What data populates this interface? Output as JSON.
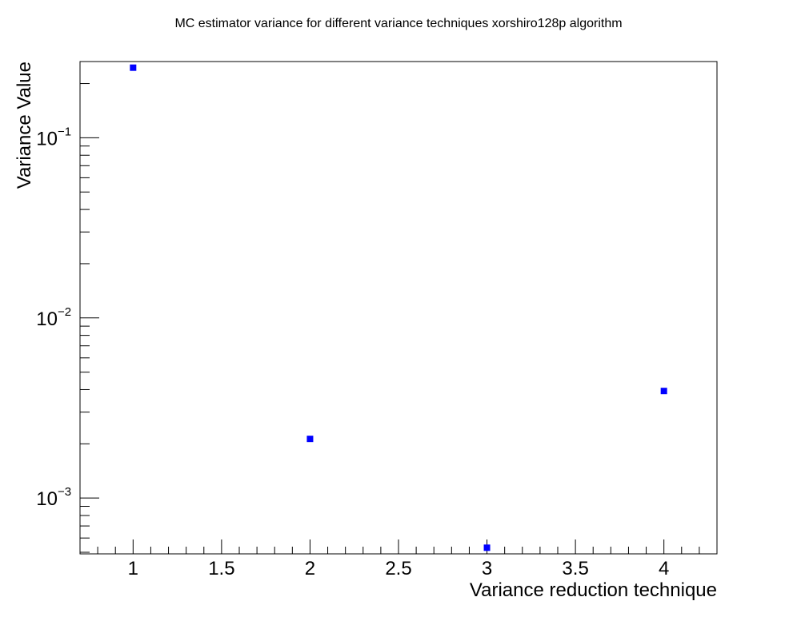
{
  "chart_data": {
    "type": "scatter",
    "title": "MC estimator variance for different variance techniques xorshiro128p algorithm",
    "xlabel": "Variance reduction technique",
    "ylabel": "Variance Value",
    "xlim": [
      0.7,
      4.3
    ],
    "ylim": [
      0.00049,
      0.265
    ],
    "yscale": "log",
    "grid": false,
    "x_ticks": [
      {
        "value": 1,
        "label": "1"
      },
      {
        "value": 1.5,
        "label": "1.5"
      },
      {
        "value": 2,
        "label": "2"
      },
      {
        "value": 2.5,
        "label": "2.5"
      },
      {
        "value": 3,
        "label": "3"
      },
      {
        "value": 3.5,
        "label": "3.5"
      },
      {
        "value": 4,
        "label": "4"
      }
    ],
    "y_ticks": [
      {
        "value": 0.1,
        "base": "10",
        "exponent": "−1"
      },
      {
        "value": 0.01,
        "base": "10",
        "exponent": "−2"
      },
      {
        "value": 0.001,
        "base": "10",
        "exponent": "−3"
      }
    ],
    "points": [
      {
        "x": 1,
        "y": 0.245
      },
      {
        "x": 2,
        "y": 0.00213
      },
      {
        "x": 3,
        "y": 0.00053
      },
      {
        "x": 4,
        "y": 0.00393
      }
    ],
    "marker_color": "#0000ff"
  }
}
